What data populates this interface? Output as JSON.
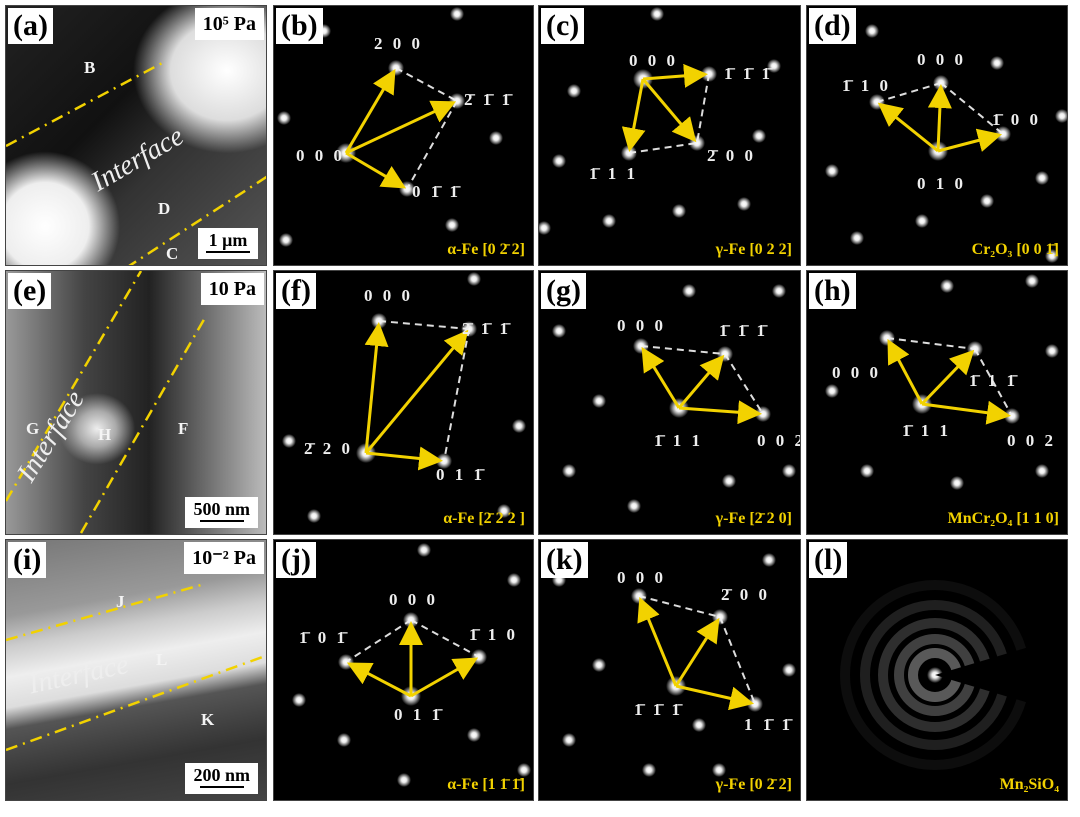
{
  "panels": {
    "a": {
      "tag": "(a)",
      "pressure": "10⁵ Pa",
      "scale": "1 μm",
      "interface": "Interface",
      "labels": [
        "B",
        "D",
        "C"
      ]
    },
    "b": {
      "tag": "(b)",
      "caption": "α-Fe [0 2̄ 2]",
      "spots": [
        "0 0 0",
        "2 0 0",
        "2̄ 1̄ 1̄",
        "0 1̄ 1̄"
      ]
    },
    "c": {
      "tag": "(c)",
      "caption": "γ-Fe [0 2 2]",
      "spots": [
        "0 0 0",
        "1̄ 1̄ 1̄",
        "1̄ 1 1",
        "2̄ 0 0"
      ]
    },
    "d": {
      "tag": "(d)",
      "caption": "Cr₂O₃ [0 0 1̄]",
      "spots": [
        "0 0 0",
        "1̄ 1 0",
        "1̄ 0 0",
        "0 1 0"
      ]
    },
    "e": {
      "tag": "(e)",
      "pressure": "10 Pa",
      "scale": "500 nm",
      "interface": "Interface",
      "labels": [
        "G",
        "H",
        "F"
      ]
    },
    "f": {
      "tag": "(f)",
      "caption": "α-Fe [2̄ 2 2 ]",
      "spots": [
        "0 0 0",
        "2̄ 1̄ 1̄",
        "2̄ 2 0",
        "0 1 1̄"
      ]
    },
    "g": {
      "tag": "(g)",
      "caption": "γ-Fe [2̄ 2 0]",
      "spots": [
        "0 0 0",
        "1̄ 1̄ 1̄",
        "1̄ 1 1",
        "0 0 2"
      ]
    },
    "h": {
      "tag": "(h)",
      "caption": "MnCr₂O₄  [1 1 0]",
      "spots": [
        "0 0 0",
        "1̄ 1 1̄",
        "1̄ 1 1",
        "0 0 2"
      ]
    },
    "i": {
      "tag": "(i)",
      "pressure": "10⁻² Pa",
      "scale": "200 nm",
      "interface": "Interface",
      "labels": [
        "J",
        "L",
        "K"
      ]
    },
    "j": {
      "tag": "(j)",
      "caption": "α-Fe [1 1̄ 1̄]",
      "spots": [
        "0 0 0",
        "1̄ 0 1̄",
        "1̄ 1 0",
        "0 1 1̄"
      ]
    },
    "k": {
      "tag": "(k)",
      "caption": "γ-Fe [0 2̄ 2]",
      "spots": [
        "0 0 0",
        "2̄ 0 0",
        "1̄ 1̄ 1̄",
        "1 1̄ 1̄"
      ]
    },
    "l": {
      "tag": "(l)",
      "caption": "Mn₂SiO₄"
    }
  },
  "colors": {
    "arrow": "#f2d200",
    "caption": "#f2d200",
    "background": "#000000"
  }
}
